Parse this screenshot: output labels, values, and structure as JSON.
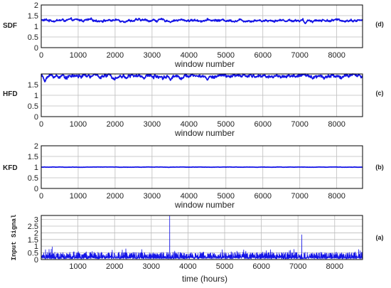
{
  "colors": {
    "series": "#1414e6",
    "grid": "#bdbdbd",
    "axis": "#000000"
  },
  "chart_data": [
    {
      "id": "sdf",
      "type": "line",
      "ylabel": "SDF",
      "panel_label": "(d)",
      "xlabel": "window number",
      "xlim": [
        0,
        8700
      ],
      "ylim": [
        0,
        2
      ],
      "xticks": [
        "0",
        "1000",
        "2000",
        "3000",
        "4000",
        "5000",
        "6000",
        "7000",
        "8000"
      ],
      "yticks": [
        "0",
        "0.5",
        "1",
        "1.5",
        "2"
      ],
      "grid": true,
      "series": [
        {
          "mean": 1.28,
          "amplitude": 0.05,
          "dips": [
            [
              3500,
              1.18
            ],
            [
              7150,
              1.12
            ]
          ]
        }
      ]
    },
    {
      "id": "hfd",
      "type": "line",
      "ylabel": "HFD",
      "panel_label": "(c)",
      "xlabel": "window number",
      "xlim": [
        0,
        8700
      ],
      "ylim": [
        0,
        2
      ],
      "xticks": [
        "0",
        "1000",
        "2000",
        "3000",
        "4000",
        "5000",
        "6000",
        "7000",
        "8000"
      ],
      "yticks": [
        "0",
        "0.5",
        "1",
        "1.5"
      ],
      "grid": true,
      "series": [
        {
          "mean": 1.9,
          "amplitude": 0.08,
          "dips": [
            [
              100,
              1.62
            ],
            [
              3500,
              1.7
            ],
            [
              4500,
              1.7
            ]
          ]
        }
      ]
    },
    {
      "id": "kfd",
      "type": "line",
      "ylabel": "KFD",
      "panel_label": "(b)",
      "xlabel": "window number",
      "xlim": [
        0,
        8700
      ],
      "ylim": [
        0,
        2
      ],
      "xticks": [
        "0",
        "1000",
        "2000",
        "3000",
        "4000",
        "5000",
        "6000",
        "7000",
        "8000"
      ],
      "yticks": [
        "0",
        "0.5",
        "1",
        "1.5",
        "2"
      ],
      "grid": true,
      "series": [
        {
          "mean": 1.0,
          "amplitude": 0.005,
          "dips": []
        }
      ]
    },
    {
      "id": "input",
      "type": "line",
      "ylabel": "Input Signal",
      "panel_label": "(a)",
      "xlabel": "time (hours)",
      "xlim": [
        0,
        8760
      ],
      "ylim": [
        0,
        3.3
      ],
      "xticks": [
        "1000",
        "2000",
        "3000",
        "4000",
        "5000",
        "6000",
        "7000",
        "8000"
      ],
      "yticks": [
        "0",
        "0.5",
        "1",
        "1.5",
        "2",
        "2.5",
        "3"
      ],
      "grid": true,
      "series": [
        {
          "baseline": 0.3,
          "amplitude": 0.25,
          "spikes": [
            [
              300,
              0.95
            ],
            [
              3500,
              3.25
            ],
            [
              7100,
              1.85
            ]
          ]
        }
      ]
    }
  ]
}
